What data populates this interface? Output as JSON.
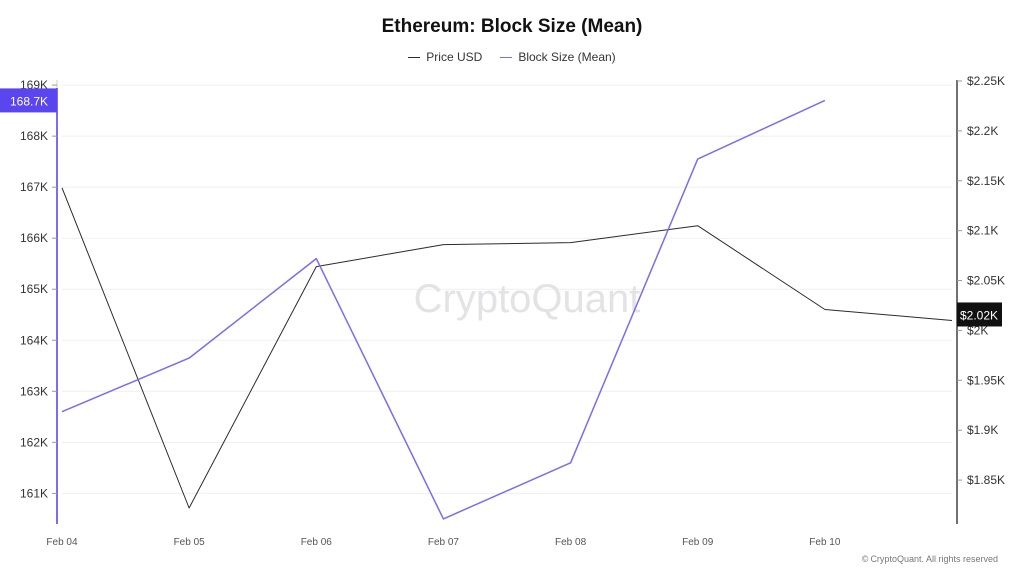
{
  "title": "Ethereum: Block Size (Mean)",
  "watermark": "CryptoQuant",
  "copyright": "CryptoQuant. All rights reserved",
  "copyright_icon": "©",
  "colors": {
    "price": "#2b2b2b",
    "block_size": "#7b6cf0",
    "left_badge_bg": "#5b45f0",
    "right_badge_bg": "#111111",
    "grid": "#efefef",
    "watermark": "#e3e3e6"
  },
  "chart_data": {
    "type": "line",
    "title": "Ethereum: Block Size (Mean)",
    "legend_position": "top-center",
    "grid": true,
    "x": [
      "Feb 04",
      "Feb 05",
      "Feb 06",
      "Feb 07",
      "Feb 08",
      "Feb 09",
      "Feb 10",
      ""
    ],
    "x_tick_labels": [
      "Feb 04",
      "Feb 05",
      "Feb 06",
      "Feb 07",
      "Feb 08",
      "Feb 09",
      "Feb 10"
    ],
    "series": [
      {
        "name": "Price USD",
        "axis": "right",
        "values": [
          2143,
          1822,
          2064,
          2086,
          2088,
          2105,
          2021,
          2010
        ]
      },
      {
        "name": "Block Size (Mean)",
        "axis": "left",
        "values": [
          162600,
          163650,
          165600,
          160500,
          161600,
          167550,
          168700,
          null
        ]
      }
    ],
    "y_left": {
      "ticks": [
        161000,
        162000,
        163000,
        164000,
        165000,
        166000,
        167000,
        168000,
        169000
      ],
      "tick_labels": [
        "161K",
        "162K",
        "163K",
        "164K",
        "165K",
        "166K",
        "167K",
        "168K",
        "169K"
      ],
      "range": [
        160400,
        169100
      ],
      "current_label": "168.7K",
      "current_value": 168700
    },
    "y_right": {
      "ticks": [
        1850,
        1900,
        1950,
        2000,
        2050,
        2100,
        2150,
        2200,
        2250
      ],
      "tick_labels": [
        "$1.85K",
        "$1.9K",
        "$1.95K",
        "$2K",
        "$2.05K",
        "$2.1K",
        "$2.15K",
        "$2.2K",
        "$2.25K"
      ],
      "range": [
        1806,
        2251
      ],
      "current_label": "$2.02K",
      "current_value": 2016
    }
  }
}
